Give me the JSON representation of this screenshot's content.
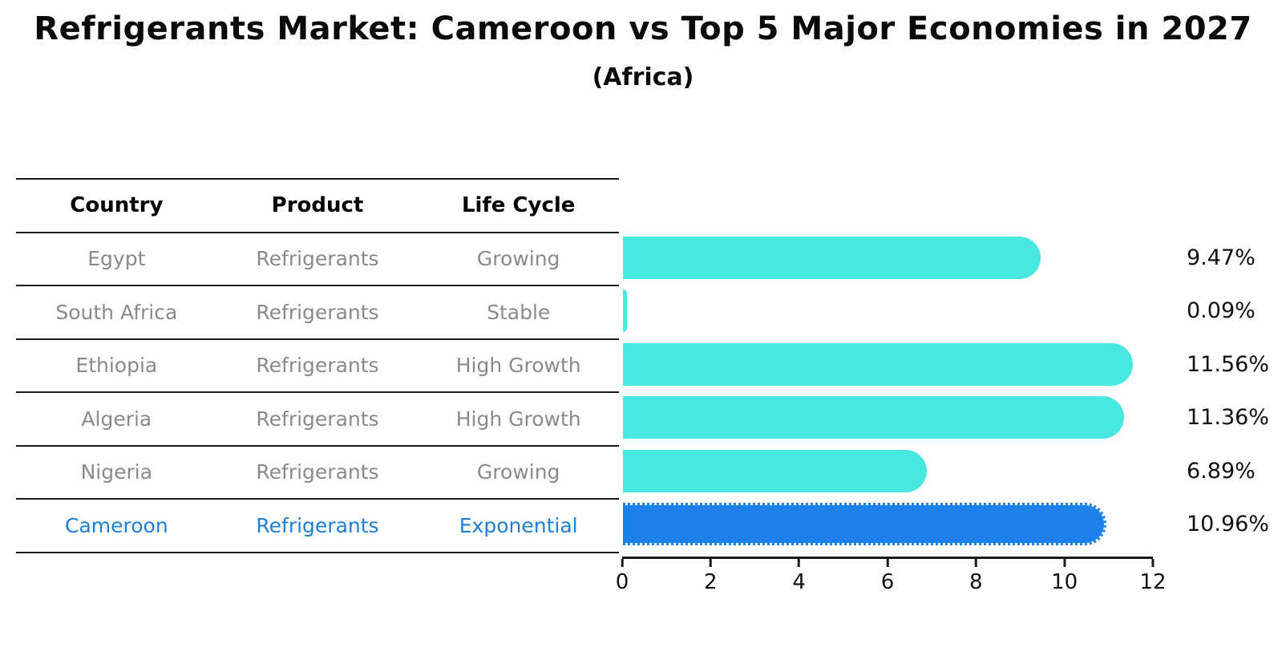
{
  "header": {
    "title": "Refrigerants Market: Cameroon vs Top 5 Major Economies in 2027",
    "subtitle": "(Africa)"
  },
  "table": {
    "headers": [
      "Country",
      "Product",
      "Life Cycle"
    ],
    "rows": [
      {
        "country": "Egypt",
        "product": "Refrigerants",
        "life_cycle": "Growing"
      },
      {
        "country": "South Africa",
        "product": "Refrigerants",
        "life_cycle": "Stable"
      },
      {
        "country": "Ethiopia",
        "product": "Refrigerants",
        "life_cycle": "High Growth"
      },
      {
        "country": "Algeria",
        "product": "Refrigerants",
        "life_cycle": "High Growth"
      },
      {
        "country": "Nigeria",
        "product": "Refrigerants",
        "life_cycle": "Growing"
      },
      {
        "country": "Cameroon",
        "product": "Refrigerants",
        "life_cycle": "Exponential"
      }
    ]
  },
  "chart_data": {
    "type": "bar",
    "orientation": "horizontal",
    "title": "Refrigerants Market: Cameroon vs Top 5 Major Economies in 2027",
    "subtitle": "(Africa)",
    "categories": [
      "Egypt",
      "South Africa",
      "Ethiopia",
      "Algeria",
      "Nigeria",
      "Cameroon"
    ],
    "values": [
      9.47,
      0.09,
      11.56,
      11.36,
      6.89,
      10.96
    ],
    "value_labels": [
      "9.47%",
      "0.09%",
      "11.56%",
      "11.36%",
      "6.89%",
      "10.96%"
    ],
    "xlabel": "",
    "ylabel": "",
    "xlim": [
      0,
      12
    ],
    "x_ticks": [
      "0",
      "2",
      "4",
      "6",
      "8",
      "10",
      "12"
    ],
    "grid": false,
    "legend": false,
    "highlight_index": 5,
    "highlight_category": "Cameroon",
    "colors": {
      "bar": "#48e7e0",
      "highlight_bar": "#1b80e8",
      "highlight_text": "#1f7fd6",
      "table_text": "#8a8a8a",
      "line": "#1a1a1a",
      "label_text": "#111111"
    }
  }
}
